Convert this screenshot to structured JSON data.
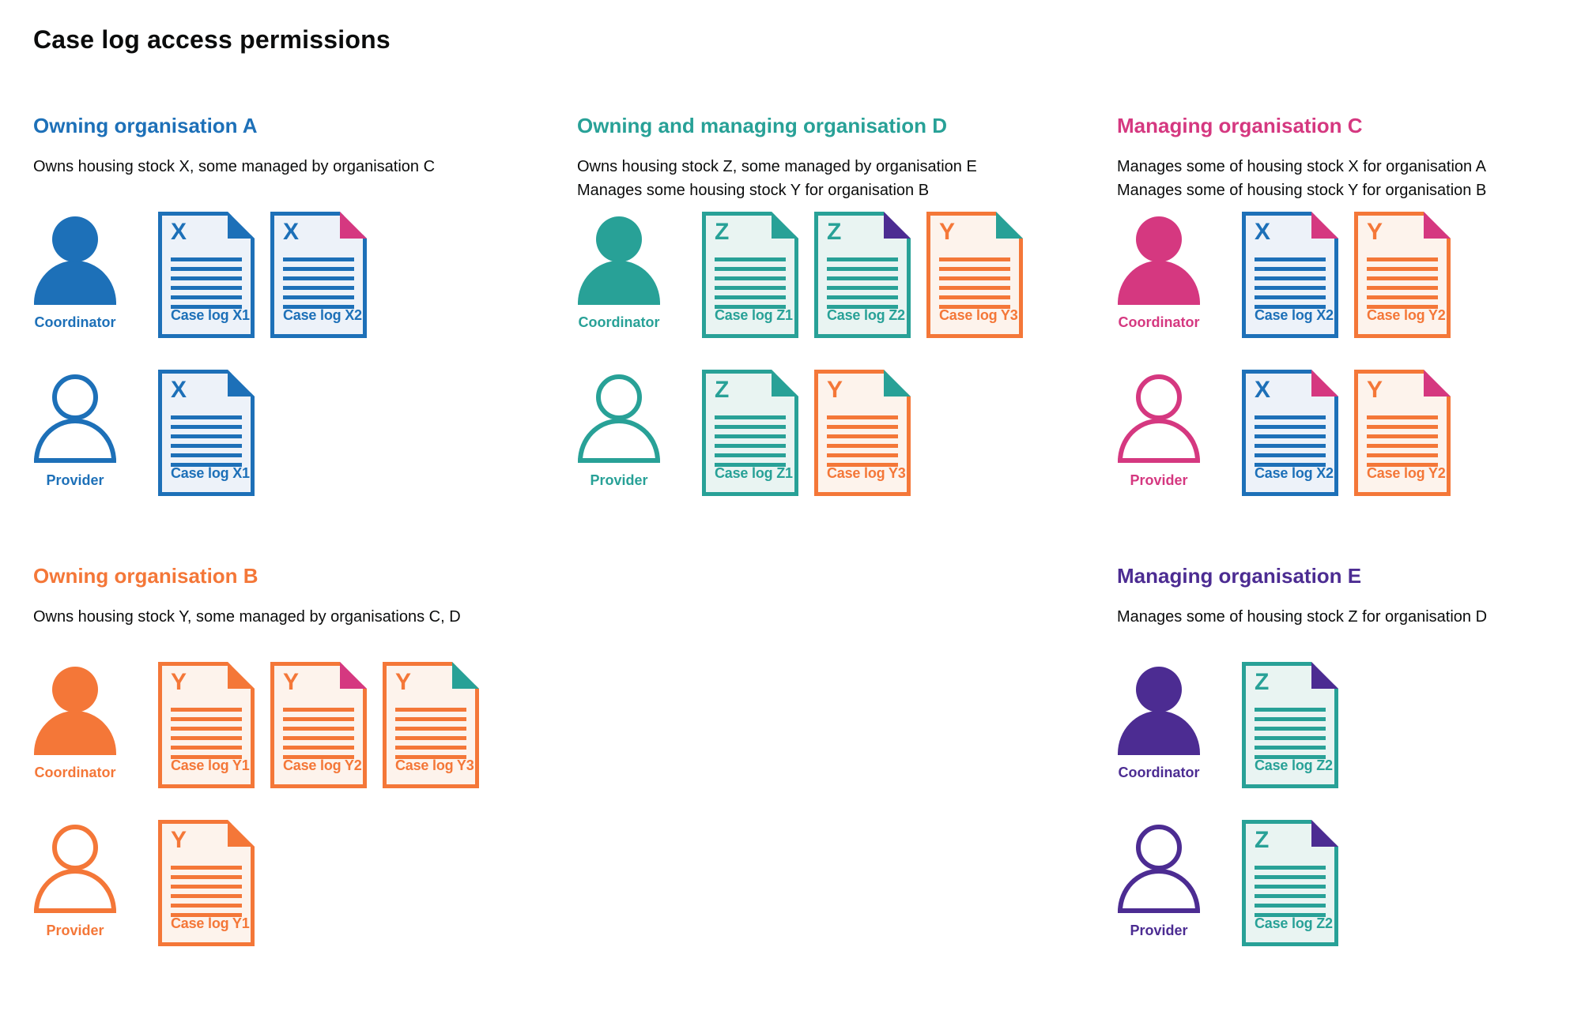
{
  "title": "Case log access permissions",
  "colors": {
    "blue": "#1d70b8",
    "teal": "#28a197",
    "pink": "#d53880",
    "orange": "#f47738",
    "purple": "#4c2c92",
    "text": "#0b0c0c",
    "background": "#ffffff",
    "fill_blue": "#edf2f9",
    "fill_teal": "#e9f4f2",
    "fill_orange": "#fdf3ec"
  },
  "sections": [
    {
      "id": "org-a",
      "slot": "a",
      "heading": "Owning organisation A",
      "color": "blue",
      "description": [
        "Owns housing stock X, some managed by organisation C"
      ],
      "rows": [
        {
          "role": "Coordinator",
          "style": "solid",
          "docs": [
            {
              "letter": "X",
              "label": "Case log X1",
              "color": "blue",
              "fold": "blue"
            },
            {
              "letter": "X",
              "label": "Case log X2",
              "color": "blue",
              "fold": "pink"
            }
          ]
        },
        {
          "role": "Provider",
          "style": "outline",
          "docs": [
            {
              "letter": "X",
              "label": "Case log X1",
              "color": "blue",
              "fold": "blue"
            }
          ]
        }
      ]
    },
    {
      "id": "org-d",
      "slot": "d",
      "heading": "Owning and managing organisation D",
      "color": "teal",
      "description": [
        "Owns housing stock Z, some managed by organisation E",
        "Manages some housing stock Y for organisation B"
      ],
      "rows": [
        {
          "role": "Coordinator",
          "style": "solid",
          "docs": [
            {
              "letter": "Z",
              "label": "Case log Z1",
              "color": "teal",
              "fold": "teal"
            },
            {
              "letter": "Z",
              "label": "Case log Z2",
              "color": "teal",
              "fold": "purple"
            },
            {
              "letter": "Y",
              "label": "Case log Y3",
              "color": "orange",
              "fold": "teal"
            }
          ]
        },
        {
          "role": "Provider",
          "style": "outline",
          "docs": [
            {
              "letter": "Z",
              "label": "Case log Z1",
              "color": "teal",
              "fold": "teal"
            },
            {
              "letter": "Y",
              "label": "Case log Y3",
              "color": "orange",
              "fold": "teal"
            }
          ]
        }
      ]
    },
    {
      "id": "org-c",
      "slot": "c",
      "heading": "Managing organisation C",
      "color": "pink",
      "description": [
        "Manages some of housing stock X for organisation A",
        "Manages some of housing stock Y for organisation B"
      ],
      "rows": [
        {
          "role": "Coordinator",
          "style": "solid",
          "docs": [
            {
              "letter": "X",
              "label": "Case log X2",
              "color": "blue",
              "fold": "pink"
            },
            {
              "letter": "Y",
              "label": "Case log Y2",
              "color": "orange",
              "fold": "pink"
            }
          ]
        },
        {
          "role": "Provider",
          "style": "outline",
          "docs": [
            {
              "letter": "X",
              "label": "Case log X2",
              "color": "blue",
              "fold": "pink"
            },
            {
              "letter": "Y",
              "label": "Case log Y2",
              "color": "orange",
              "fold": "pink"
            }
          ]
        }
      ]
    },
    {
      "id": "org-b",
      "slot": "b",
      "heading": "Owning organisation B",
      "color": "orange",
      "description": [
        "Owns housing stock Y, some managed by organisations C, D"
      ],
      "rows": [
        {
          "role": "Coordinator",
          "style": "solid",
          "docs": [
            {
              "letter": "Y",
              "label": "Case log Y1",
              "color": "orange",
              "fold": "orange"
            },
            {
              "letter": "Y",
              "label": "Case log Y2",
              "color": "orange",
              "fold": "pink"
            },
            {
              "letter": "Y",
              "label": "Case log Y3",
              "color": "orange",
              "fold": "teal"
            }
          ]
        },
        {
          "role": "Provider",
          "style": "outline",
          "docs": [
            {
              "letter": "Y",
              "label": "Case log Y1",
              "color": "orange",
              "fold": "orange"
            }
          ]
        }
      ]
    },
    {
      "id": "org-e",
      "slot": "e",
      "heading": "Managing organisation E",
      "color": "purple",
      "description": [
        "Manages some of housing stock Z for organisation D"
      ],
      "rows": [
        {
          "role": "Coordinator",
          "style": "solid",
          "docs": [
            {
              "letter": "Z",
              "label": "Case log Z2",
              "color": "teal",
              "fold": "purple"
            }
          ]
        },
        {
          "role": "Provider",
          "style": "outline",
          "docs": [
            {
              "letter": "Z",
              "label": "Case log Z2",
              "color": "teal",
              "fold": "purple"
            }
          ]
        }
      ]
    }
  ]
}
